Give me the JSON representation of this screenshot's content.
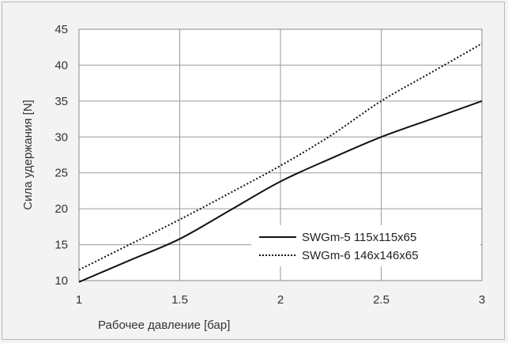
{
  "chart_data": {
    "type": "line",
    "title": "",
    "xlabel": "Рабочее давление [бар]",
    "ylabel": "Сила удержания [N]",
    "xlim": [
      1,
      3
    ],
    "ylim": [
      10,
      45
    ],
    "x_ticks": [
      "1",
      "1.5",
      "2",
      "2.5",
      "3"
    ],
    "y_ticks": [
      "10",
      "15",
      "20",
      "25",
      "30",
      "35",
      "40",
      "45"
    ],
    "grid": true,
    "legend_position": "bottom-right",
    "series": [
      {
        "name": "SWGm-5 115x115x65",
        "style": "solid",
        "color": "#111111",
        "x": [
          1,
          1.25,
          1.5,
          1.75,
          2,
          2.25,
          2.5,
          2.75,
          3
        ],
        "y": [
          9.8,
          12.8,
          15.8,
          19.8,
          23.8,
          27.0,
          30.0,
          32.5,
          35.0
        ]
      },
      {
        "name": "SWGm-6 146x146x65",
        "style": "dotted",
        "color": "#111111",
        "x": [
          1,
          1.25,
          1.5,
          1.75,
          2,
          2.25,
          2.5,
          2.75,
          3
        ],
        "y": [
          11.5,
          15.0,
          18.5,
          22.2,
          26.0,
          30.2,
          35.0,
          39.0,
          43.0
        ]
      }
    ]
  }
}
